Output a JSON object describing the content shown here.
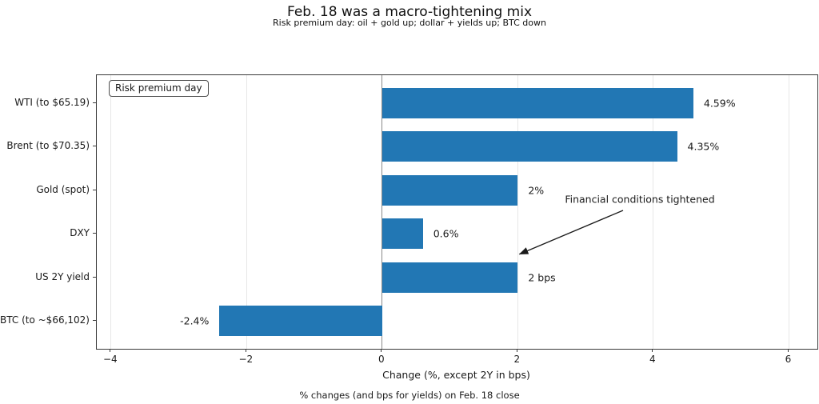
{
  "header": {
    "title": "Feb. 18 was a macro-tightening mix",
    "subtitle": "Risk premium day: oil + gold up; dollar + yields up; BTC down"
  },
  "footer": {
    "caption": "% changes (and bps for yields) on Feb. 18 close"
  },
  "colors": {
    "bar": "#2277b4",
    "spine": "#3a3a3a",
    "grid": "#e7e7e7",
    "zero_line": "#8a8a8a",
    "text": "#1a1a1a"
  },
  "chart_data": {
    "type": "bar",
    "orientation": "horizontal",
    "title": "Feb. 18 was a macro-tightening mix",
    "subtitle": "Risk premium day: oil + gold up; dollar + yields up; BTC down",
    "categories": [
      "WTI (to $65.19)",
      "Brent (to $70.35)",
      "Gold (spot)",
      "DXY",
      "US 2Y yield",
      "BTC (to ~$66,102)"
    ],
    "values": [
      4.59,
      4.35,
      2.0,
      0.6,
      2.0,
      -2.4
    ],
    "bar_labels": [
      "4.59%",
      "4.35%",
      "2%",
      "0.6%",
      "2 bps",
      "-2.4%"
    ],
    "xlabel": "Change (%, except 2Y in bps)",
    "ylabel": "",
    "xlim": [
      -4.21,
      6.42
    ],
    "xticks": [
      -4,
      -2,
      0,
      2,
      4,
      6
    ],
    "xtick_labels": [
      "−4",
      "−2",
      "0",
      "2",
      "4",
      "6"
    ],
    "grid": true,
    "legend": "Risk premium day",
    "legend_position": "upper-left",
    "annotation": {
      "text": "Financial conditions tightened",
      "points_to_category": "US 2Y yield",
      "points_to_value": 2.0
    }
  }
}
